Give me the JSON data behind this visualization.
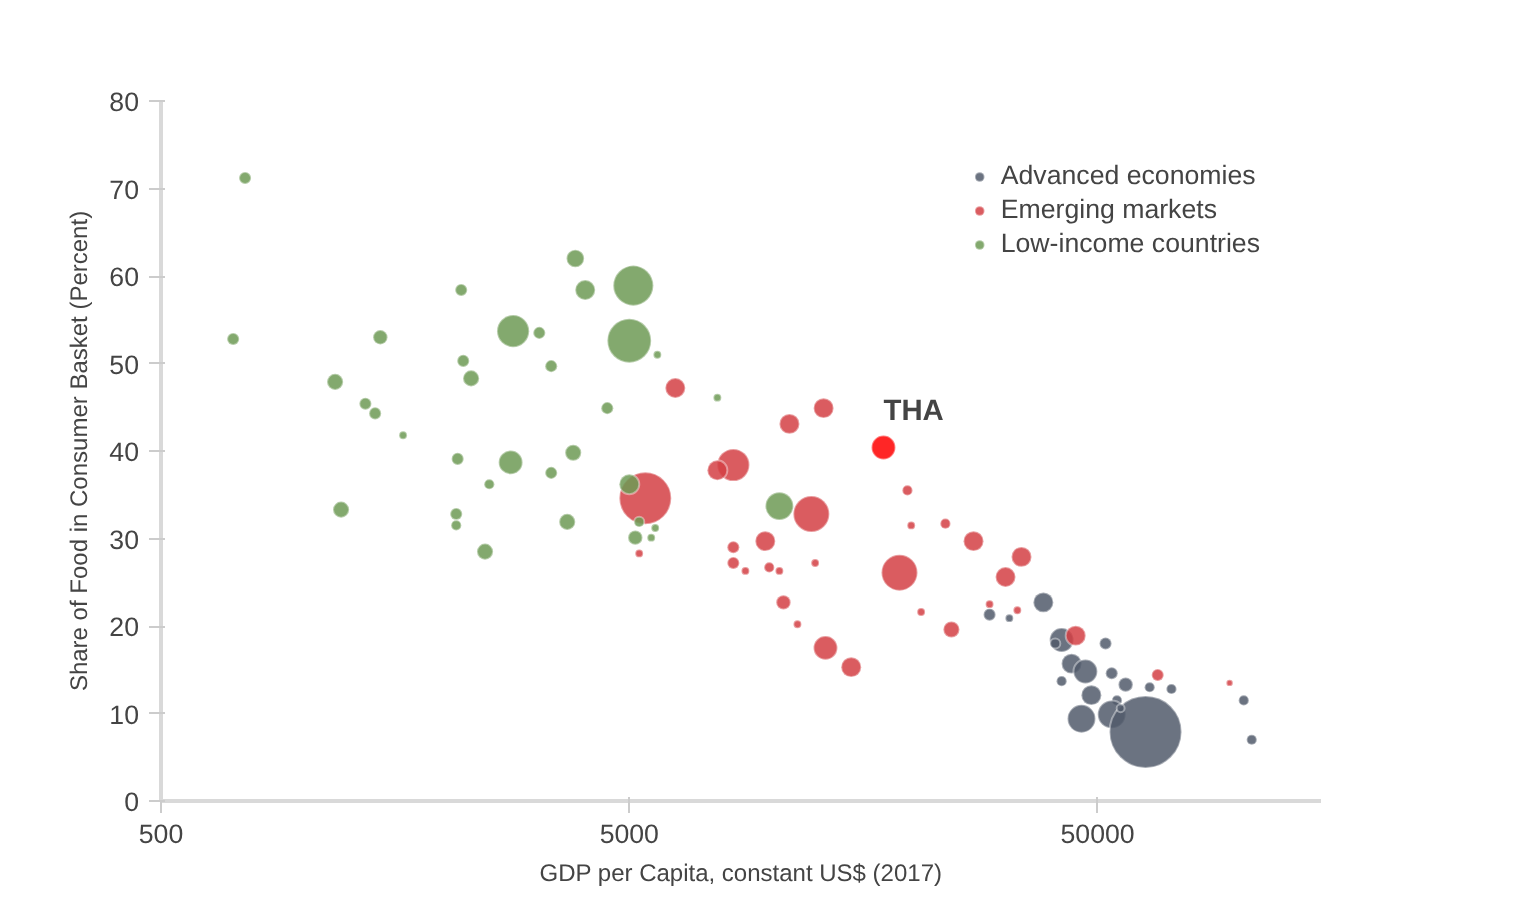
{
  "chart_data": {
    "type": "bubble",
    "xlabel": "GDP per Capita, constant US$ (2017)",
    "ylabel": "Share of Food in Consumer Basket (Percent)",
    "log": "x",
    "xlim": [
      500,
      150000
    ],
    "xticks": [
      500,
      5000,
      50000
    ],
    "ylim": [
      0,
      80
    ],
    "yticks": [
      0,
      10,
      20,
      30,
      40,
      50,
      60,
      70,
      80
    ],
    "grid": false,
    "legend": "top right",
    "series": [
      {
        "name": "Advanced economies",
        "color": "#515b6b",
        "x": [
          38300,
          41900,
          40600,
          44000,
          47100,
          52000,
          53600,
          41900,
          48500,
          57400,
          64600,
          71900,
          55000,
          46200,
          53600,
          63300,
          56000,
          102600,
          106700,
          29400,
          32400
        ],
        "values": [
          22.7,
          18.4,
          18.0,
          15.7,
          14.8,
          18.0,
          14.6,
          13.7,
          12.1,
          13.3,
          13.0,
          12.8,
          11.5,
          9.4,
          9.9,
          7.9,
          10.6,
          11.5,
          7.0,
          21.3,
          20.9
        ],
        "sizes": [
          0.077,
          0.11,
          0.02,
          0.077,
          0.11,
          0.028,
          0.028,
          0.02,
          0.077,
          0.04,
          0.02,
          0.02,
          0.02,
          0.15,
          0.15,
          1,
          0.012,
          0.02,
          0.02,
          0.028,
          0.012
        ]
      },
      {
        "name": "Emerging markets",
        "color": "#d43f44",
        "x": [
          5250,
          6270,
          5410,
          8340,
          7710,
          10990,
          13000,
          12240,
          9760,
          8340,
          8340,
          8850,
          9950,
          10460,
          12470,
          10670,
          11430,
          13120,
          14890,
          18880,
          19630,
          20000,
          23660,
          27170,
          21000,
          24370,
          31800,
          34400,
          33700,
          44900,
          67200,
          95700,
          29400
        ],
        "values": [
          28.3,
          47.2,
          34.6,
          38.4,
          37.8,
          43.1,
          44.9,
          32.8,
          29.7,
          29.0,
          27.2,
          26.3,
          26.7,
          26.3,
          27.2,
          22.7,
          20.2,
          17.5,
          15.3,
          26.1,
          35.5,
          31.5,
          31.7,
          29.7,
          21.6,
          19.6,
          25.6,
          27.9,
          21.8,
          18.9,
          14.4,
          13.5,
          22.5
        ],
        "sizes": [
          0.012,
          0.077,
          0.52,
          0.2,
          0.077,
          0.077,
          0.077,
          0.25,
          0.077,
          0.028,
          0.028,
          0.012,
          0.02,
          0.012,
          0.012,
          0.04,
          0.012,
          0.11,
          0.077,
          0.25,
          0.02,
          0.012,
          0.02,
          0.077,
          0.012,
          0.05,
          0.077,
          0.077,
          0.012,
          0.077,
          0.028,
          0.008,
          0.012
        ]
      },
      {
        "color": "#ff0000",
        "x": [
          17450
        ],
        "values": [
          40.4
        ],
        "sizes": [
          0.11
        ]
      },
      {
        "name": "Low-income countries",
        "color": "#6d9a55",
        "x": [
          756,
          713,
          1177,
          1366,
          1433,
          1644,
          1470,
          1212,
          2188,
          2210,
          2297,
          2824,
          3212,
          3406,
          3835,
          4026,
          5100,
          5000,
          4487,
          2790,
          2150,
          2512,
          2135,
          2135,
          2460,
          3795,
          3406,
          3685,
          5000,
          5250,
          5150,
          5570,
          5680,
          10460,
          5740,
          7710
        ],
        "values": [
          71.2,
          52.8,
          47.9,
          45.4,
          44.3,
          41.8,
          53.0,
          33.3,
          58.4,
          50.3,
          48.3,
          53.7,
          53.5,
          49.7,
          62.0,
          58.4,
          58.9,
          52.6,
          44.9,
          38.7,
          39.1,
          36.2,
          32.8,
          31.5,
          28.5,
          39.8,
          37.5,
          31.9,
          36.2,
          31.9,
          30.1,
          30.1,
          31.2,
          33.7,
          51.0,
          46.1
        ],
        "sizes": [
          0.028,
          0.028,
          0.05,
          0.028,
          0.028,
          0.012,
          0.04,
          0.05,
          0.028,
          0.028,
          0.05,
          0.2,
          0.028,
          0.028,
          0.06,
          0.077,
          0.31,
          0.37,
          0.028,
          0.11,
          0.028,
          0.02,
          0.028,
          0.02,
          0.05,
          0.05,
          0.028,
          0.05,
          0.077,
          0.02,
          0.04,
          0.012,
          0.012,
          0.15,
          0.012,
          0.012
        ]
      }
    ],
    "annotations": [
      {
        "text": "THA",
        "x": 17450,
        "y": 40.4
      }
    ]
  }
}
